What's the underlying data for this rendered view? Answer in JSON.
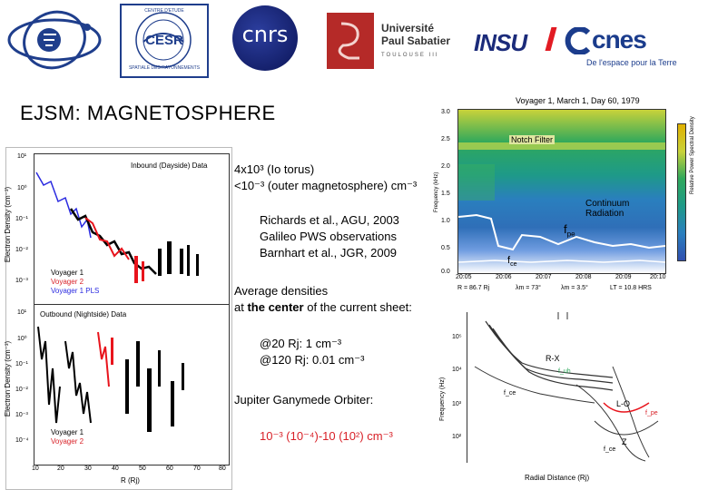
{
  "logos": {
    "cesr_ring_top": "CENTRE D'ETUDE",
    "cesr_ring_bottom": "SPATIALE DES RAYONNEMENTS",
    "cesr_text": "CESR",
    "cnrs_text": "cnrs",
    "ups_line1": "Université",
    "ups_line2": "Paul Sabatier",
    "ups_line3": "TOULOUSE III",
    "insu_text": "INSU",
    "cnes_text": "cnes",
    "cnes_tagline": "De l'espace pour la Terre"
  },
  "slide": {
    "title": "EJSM: MAGNETOSPHERE"
  },
  "notes": {
    "density_io": "4x10³ (Io torus)",
    "density_outer": "<10⁻³ (outer magnetosphere) cm⁻³",
    "ref1": "Richards et al., AGU, 2003",
    "ref2": "Galileo PWS observations",
    "ref3": "Barnhart et al., JGR, 2009",
    "avg_line1": "Average densities",
    "avg_line2_pre": "at ",
    "avg_line2_bold": "the center",
    "avg_line2_post": " of the current sheet:",
    "rj20": "@20 Rj: 1 cm⁻³",
    "rj120": "@120 Rj: 0.01 cm⁻³",
    "jgo": "Jupiter Ganymede Orbiter:",
    "jgo_density": "10⁻³ (10⁻⁴)-10 (10²) cm⁻³"
  },
  "density_plot": {
    "top_title": "Inbound (Dayside) Data",
    "bottom_title": "Outbound (Nightside) Data",
    "ylabel": "Electron Density (cm⁻³)",
    "xlabel": "R (Rj)",
    "legend_top": [
      "Voyager 1",
      "Voyager 2",
      "Voyager 1 PLS"
    ],
    "legend_bottom": [
      "Voyager 1",
      "Voyager 2"
    ],
    "xticks": [
      "10",
      "20",
      "30",
      "40",
      "50",
      "60",
      "70",
      "80"
    ],
    "yticks_top": [
      "10¹",
      "10⁰",
      "10⁻¹",
      "10⁻²",
      "10⁻³"
    ],
    "yticks_bottom": [
      "10¹",
      "10⁰",
      "10⁻¹",
      "10⁻²",
      "10⁻³",
      "10⁻⁴"
    ],
    "colors": {
      "v1": "#000000",
      "v2": "#e8141c",
      "pls": "#2a2ae0"
    }
  },
  "spectrogram": {
    "title": "Voyager 1, March 1, Day 60, 1979",
    "notch": "Notch Filter",
    "continuum": "Continuum Radiation",
    "fpe": "f",
    "fpe_sub": "pe",
    "fce": "f",
    "fce_sub": "ce",
    "ylabel": "Frequency (kHz)",
    "cbar_label": "Relative Power Spectral Density",
    "yticks": [
      "3.0",
      "2.5",
      "2.0",
      "1.5",
      "1.0",
      "0.5",
      "0.0"
    ],
    "xticks": [
      "20:05",
      "20:06",
      "20:07",
      "20:08",
      "20:09",
      "20:10"
    ],
    "footer": [
      "R = 86.7 Rj",
      "λm = 73°",
      "λm = 3.5°",
      "LT = 10.8 HRS"
    ]
  },
  "wave_plot": {
    "ylabel": "Frequency (Hz)",
    "xlabel": "Radial Distance (Rj)",
    "yticks": [
      "10⁵",
      "10⁴",
      "10³",
      "10²"
    ],
    "labels": {
      "rx": "R-X",
      "lo": "L-O",
      "z": "Z",
      "fuh": "f_uh",
      "fce": "f_ce",
      "fpe": "f_pe",
      "fce2": "f_ce"
    }
  }
}
